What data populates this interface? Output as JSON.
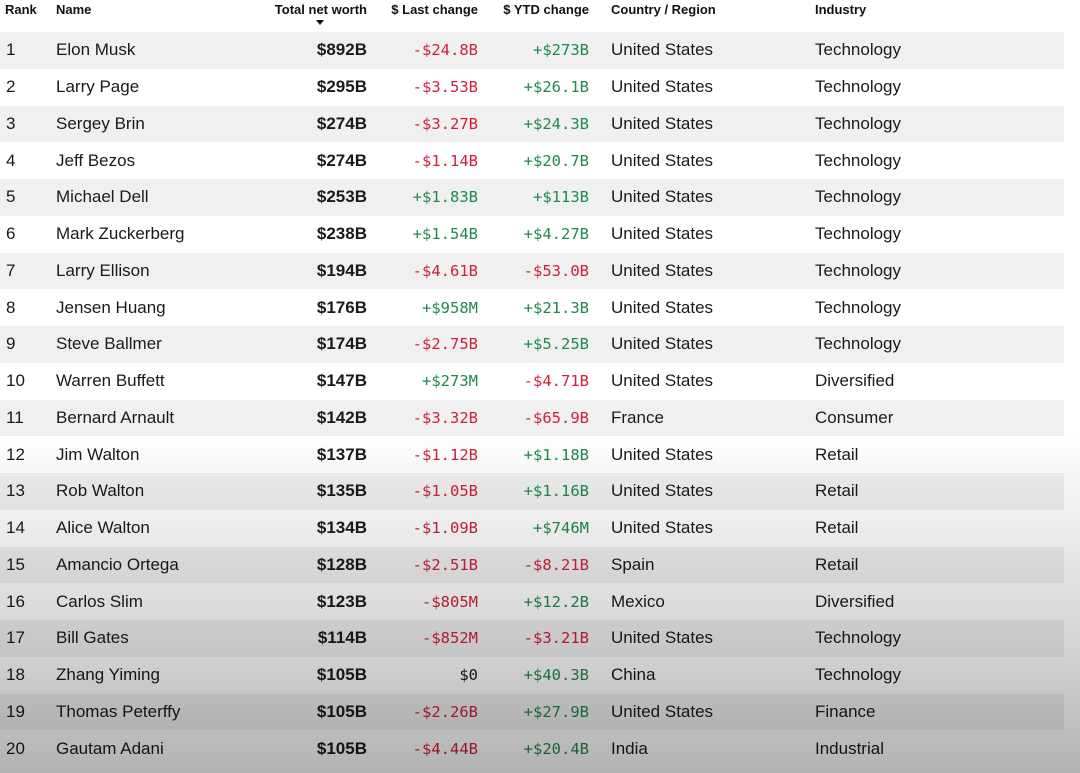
{
  "header": {
    "rank": "Rank",
    "name": "Name",
    "net_worth": "Total net worth",
    "last_change": "$ Last change",
    "ytd_change": "$ YTD change",
    "country": "Country / Region",
    "industry": "Industry"
  },
  "colors": {
    "negative": "#d1203a",
    "positive": "#1f8a4c",
    "row_shade": "#f0f0f0"
  },
  "rows": [
    {
      "rank": "1",
      "name": "Elon Musk",
      "worth": "$892B",
      "last": "-$24.8B",
      "ytd": "+$273B",
      "country": "United States",
      "industry": "Technology"
    },
    {
      "rank": "2",
      "name": "Larry Page",
      "worth": "$295B",
      "last": "-$3.53B",
      "ytd": "+$26.1B",
      "country": "United States",
      "industry": "Technology"
    },
    {
      "rank": "3",
      "name": "Sergey Brin",
      "worth": "$274B",
      "last": "-$3.27B",
      "ytd": "+$24.3B",
      "country": "United States",
      "industry": "Technology"
    },
    {
      "rank": "4",
      "name": "Jeff Bezos",
      "worth": "$274B",
      "last": "-$1.14B",
      "ytd": "+$20.7B",
      "country": "United States",
      "industry": "Technology"
    },
    {
      "rank": "5",
      "name": "Michael Dell",
      "worth": "$253B",
      "last": "+$1.83B",
      "ytd": "+$113B",
      "country": "United States",
      "industry": "Technology"
    },
    {
      "rank": "6",
      "name": "Mark Zuckerberg",
      "worth": "$238B",
      "last": "+$1.54B",
      "ytd": "+$4.27B",
      "country": "United States",
      "industry": "Technology"
    },
    {
      "rank": "7",
      "name": "Larry Ellison",
      "worth": "$194B",
      "last": "-$4.61B",
      "ytd": "-$53.0B",
      "country": "United States",
      "industry": "Technology"
    },
    {
      "rank": "8",
      "name": "Jensen Huang",
      "worth": "$176B",
      "last": "+$958M",
      "ytd": "+$21.3B",
      "country": "United States",
      "industry": "Technology"
    },
    {
      "rank": "9",
      "name": "Steve Ballmer",
      "worth": "$174B",
      "last": "-$2.75B",
      "ytd": "+$5.25B",
      "country": "United States",
      "industry": "Technology"
    },
    {
      "rank": "10",
      "name": "Warren Buffett",
      "worth": "$147B",
      "last": "+$273M",
      "ytd": "-$4.71B",
      "country": "United States",
      "industry": "Diversified"
    },
    {
      "rank": "11",
      "name": "Bernard Arnault",
      "worth": "$142B",
      "last": "-$3.32B",
      "ytd": "-$65.9B",
      "country": "France",
      "industry": "Consumer"
    },
    {
      "rank": "12",
      "name": "Jim Walton",
      "worth": "$137B",
      "last": "-$1.12B",
      "ytd": "+$1.18B",
      "country": "United States",
      "industry": "Retail"
    },
    {
      "rank": "13",
      "name": "Rob Walton",
      "worth": "$135B",
      "last": "-$1.05B",
      "ytd": "+$1.16B",
      "country": "United States",
      "industry": "Retail"
    },
    {
      "rank": "14",
      "name": "Alice Walton",
      "worth": "$134B",
      "last": "-$1.09B",
      "ytd": "+$746M",
      "country": "United States",
      "industry": "Retail"
    },
    {
      "rank": "15",
      "name": "Amancio Ortega",
      "worth": "$128B",
      "last": "-$2.51B",
      "ytd": "-$8.21B",
      "country": "Spain",
      "industry": "Retail"
    },
    {
      "rank": "16",
      "name": "Carlos Slim",
      "worth": "$123B",
      "last": "-$805M",
      "ytd": "+$12.2B",
      "country": "Mexico",
      "industry": "Diversified"
    },
    {
      "rank": "17",
      "name": "Bill Gates",
      "worth": "$114B",
      "last": "-$852M",
      "ytd": "-$3.21B",
      "country": "United States",
      "industry": "Technology"
    },
    {
      "rank": "18",
      "name": "Zhang Yiming",
      "worth": "$105B",
      "last": "$0",
      "ytd": "+$40.3B",
      "country": "China",
      "industry": "Technology"
    },
    {
      "rank": "19",
      "name": "Thomas Peterffy",
      "worth": "$105B",
      "last": "-$2.26B",
      "ytd": "+$27.9B",
      "country": "United States",
      "industry": "Finance"
    },
    {
      "rank": "20",
      "name": "Gautam Adani",
      "worth": "$105B",
      "last": "-$4.44B",
      "ytd": "+$20.4B",
      "country": "India",
      "industry": "Industrial"
    }
  ]
}
